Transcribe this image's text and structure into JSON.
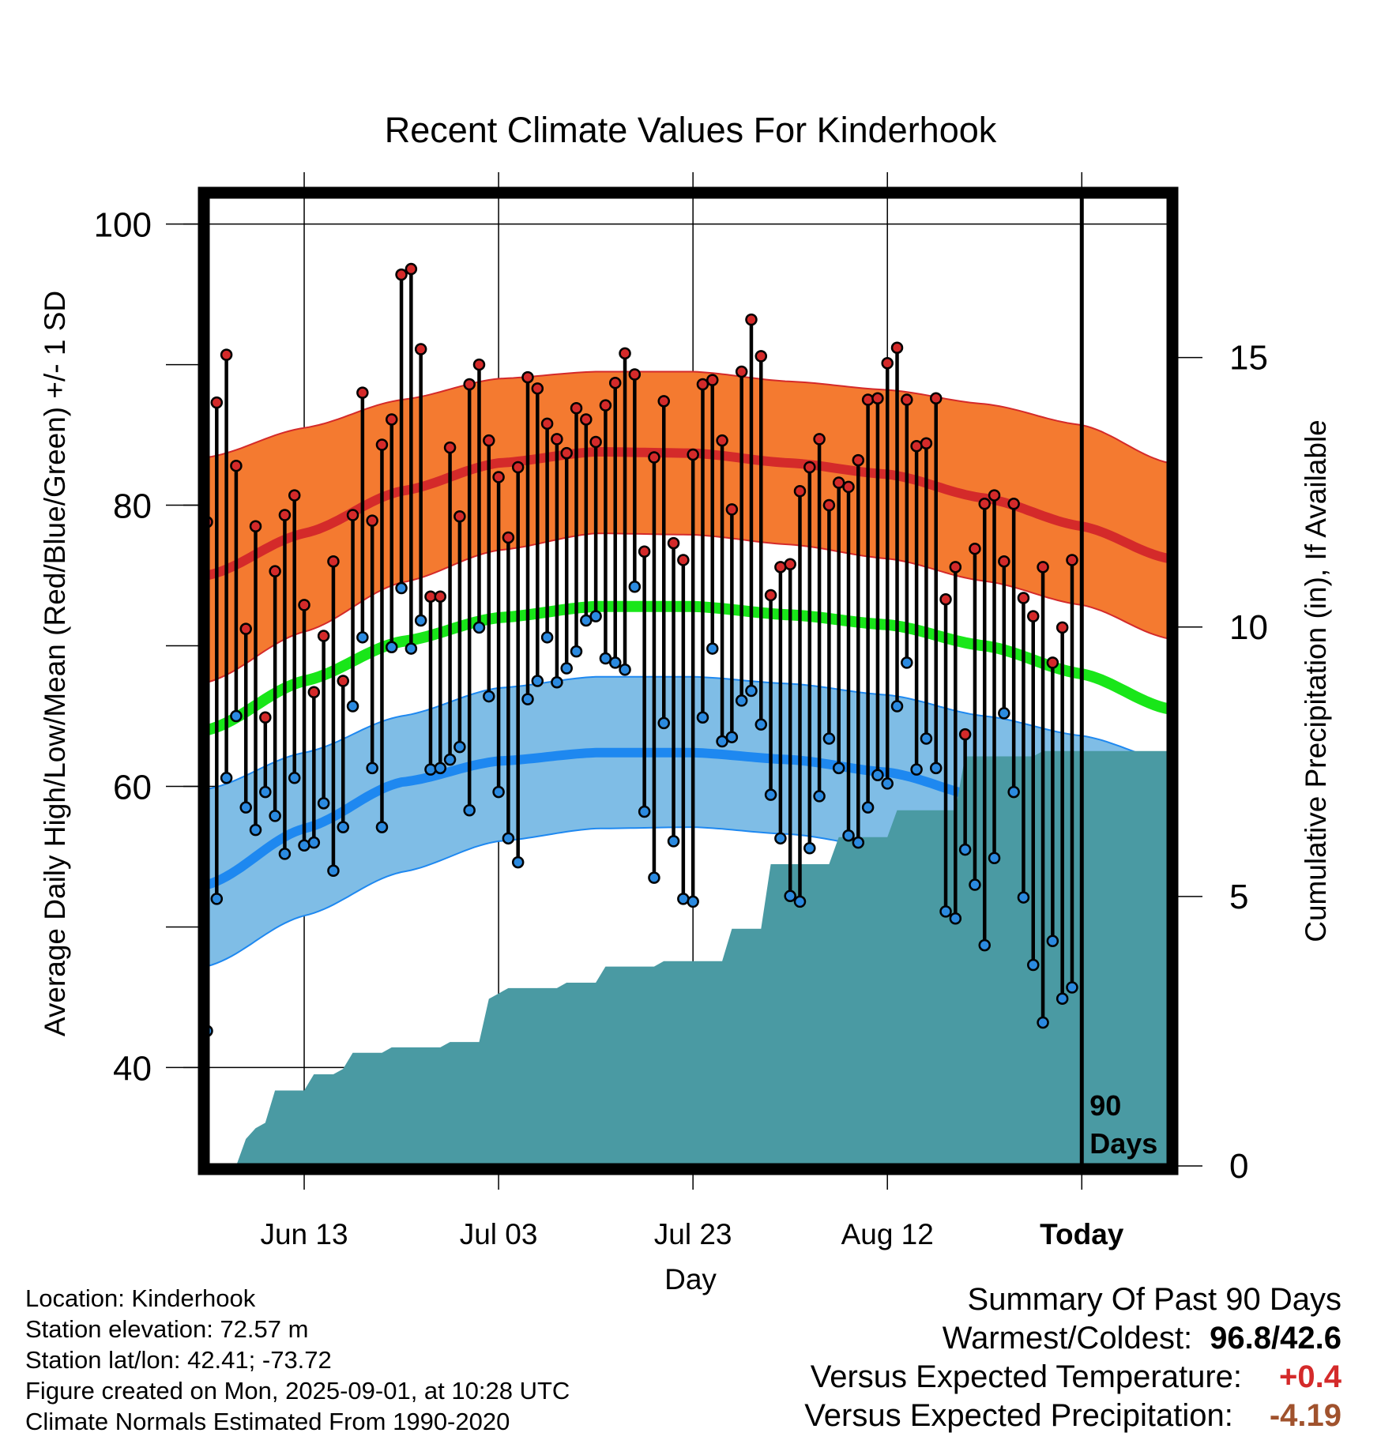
{
  "chart_data": {
    "type": "line",
    "title": "Recent Climate Values For Kinderhook",
    "xlabel": "Day",
    "ylabel": "Average Daily High/Low/Mean (Red/Blue/Green) +/- 1 SD",
    "y2label": "Cumulative Precipitation (in), If Available",
    "ylim": [
      33,
      102
    ],
    "y_ticks": [
      40,
      60,
      80,
      100
    ],
    "y2lim": [
      0,
      18
    ],
    "y2_ticks": [
      0,
      5,
      10,
      15
    ],
    "x_range_days": [
      -90,
      9
    ],
    "x_ticks": [
      {
        "day": -80,
        "label": "Jun 13"
      },
      {
        "day": -60,
        "label": "Jul 03"
      },
      {
        "day": -40,
        "label": "Jul 23"
      },
      {
        "day": -20,
        "label": "Aug 12"
      },
      {
        "day": 0,
        "label": "Today"
      }
    ],
    "today_marker_label": "90 Days",
    "grid": true,
    "normals": {
      "day": [
        -90,
        -80,
        -70,
        -60,
        -50,
        -40,
        -30,
        -20,
        -10,
        0,
        9
      ],
      "high_mean": [
        75.0,
        78.0,
        81.0,
        83.0,
        83.8,
        83.7,
        83.0,
        82.2,
        80.5,
        78.5,
        76.2
      ],
      "high_upper": [
        83.4,
        85.5,
        87.5,
        89.0,
        89.5,
        89.5,
        88.8,
        88.2,
        87.2,
        85.7,
        83.0
      ],
      "high_lower": [
        67.4,
        71.0,
        74.5,
        76.8,
        78.0,
        77.9,
        77.2,
        76.2,
        74.6,
        72.9,
        70.5
      ],
      "mean": [
        64.0,
        67.5,
        70.3,
        72.0,
        72.8,
        72.8,
        72.2,
        71.5,
        70.0,
        68.0,
        65.5
      ],
      "low_mean": [
        53.0,
        57.0,
        60.3,
        61.8,
        62.4,
        62.4,
        61.9,
        61.0,
        59.2,
        56.8,
        54.2
      ],
      "low_upper": [
        59.8,
        62.4,
        65.0,
        67.0,
        67.8,
        67.8,
        67.3,
        66.5,
        65.0,
        63.6,
        61.8
      ],
      "low_lower": [
        47.2,
        50.8,
        53.9,
        56.1,
        57.0,
        57.1,
        56.6,
        55.6,
        53.8,
        51.3,
        48.2
      ]
    },
    "series": [
      {
        "name": "High",
        "color": "#d42a2a",
        "values": [
          78.8,
          87.3,
          90.7,
          82.8,
          71.2,
          78.5,
          64.9,
          75.3,
          79.3,
          80.7,
          72.9,
          66.7,
          70.7,
          76.0,
          67.5,
          79.3,
          88.0,
          78.9,
          84.3,
          86.1,
          96.4,
          96.8,
          91.1,
          73.5,
          73.5,
          84.1,
          79.2,
          88.6,
          90.0,
          84.6,
          82.0,
          77.7,
          82.7,
          89.1,
          88.3,
          85.8,
          84.7,
          83.7,
          86.9,
          86.1,
          84.5,
          87.1,
          88.7,
          90.8,
          89.3,
          76.7,
          83.4,
          87.4,
          77.3,
          76.1,
          83.6,
          88.6,
          88.9,
          84.6,
          79.7,
          89.5,
          93.2,
          90.6,
          73.6,
          75.6,
          75.8,
          81.0,
          82.7,
          84.7,
          80.0,
          81.6,
          81.3,
          83.2,
          87.5,
          87.6,
          90.1,
          91.2,
          87.5,
          84.2,
          84.4,
          87.6,
          73.3,
          75.6,
          63.7,
          76.9,
          80.1,
          80.7,
          76.0,
          80.1,
          73.4,
          72.1,
          75.6,
          68.8,
          71.3,
          76.1
        ]
      },
      {
        "name": "Low",
        "color": "#2b8ae0",
        "values": [
          42.6,
          52.0,
          60.6,
          65.0,
          58.5,
          56.9,
          59.6,
          57.9,
          55.2,
          60.6,
          55.8,
          56.0,
          58.8,
          54.0,
          57.1,
          65.7,
          70.6,
          61.3,
          57.1,
          69.9,
          74.1,
          69.8,
          71.8,
          61.2,
          61.3,
          61.9,
          62.8,
          58.3,
          71.3,
          66.4,
          59.6,
          56.3,
          54.6,
          66.2,
          67.5,
          70.6,
          67.4,
          68.4,
          69.6,
          71.8,
          72.1,
          69.1,
          68.8,
          68.3,
          74.2,
          58.2,
          53.5,
          64.5,
          56.1,
          52.0,
          51.8,
          64.9,
          69.8,
          63.2,
          63.5,
          66.1,
          66.8,
          64.4,
          59.4,
          56.3,
          52.2,
          51.8,
          55.6,
          59.3,
          63.4,
          61.3,
          56.5,
          56.0,
          58.5,
          60.8,
          60.2,
          65.7,
          68.8,
          61.2,
          63.4,
          61.3,
          51.1,
          50.6,
          55.5,
          53.0,
          48.7,
          54.9,
          65.2,
          59.6,
          52.1,
          47.3,
          43.2,
          49.0,
          44.9,
          45.7
        ]
      },
      {
        "name": "Cumulative Precipitation",
        "color": "#4a9aa3",
        "values": [
          0.0,
          0.0,
          0.0,
          0.0,
          0.5,
          0.7,
          0.8,
          1.4,
          1.4,
          1.4,
          1.4,
          1.7,
          1.7,
          1.7,
          1.8,
          2.1,
          2.1,
          2.1,
          2.1,
          2.2,
          2.2,
          2.2,
          2.2,
          2.2,
          2.2,
          2.3,
          2.3,
          2.3,
          2.3,
          3.1,
          3.2,
          3.3,
          3.3,
          3.3,
          3.3,
          3.3,
          3.3,
          3.4,
          3.4,
          3.4,
          3.4,
          3.7,
          3.7,
          3.7,
          3.7,
          3.7,
          3.7,
          3.8,
          3.8,
          3.8,
          3.8,
          3.8,
          3.8,
          3.8,
          4.4,
          4.4,
          4.4,
          4.4,
          5.6,
          5.6,
          5.6,
          5.6,
          5.6,
          5.6,
          5.6,
          6.1,
          6.1,
          6.1,
          6.1,
          6.1,
          6.1,
          6.6,
          6.6,
          6.6,
          6.6,
          6.6,
          6.6,
          6.6,
          7.6,
          7.6,
          7.6,
          7.6,
          7.6,
          7.6,
          7.6,
          7.6,
          7.7,
          7.7,
          7.7,
          7.7,
          7.7,
          7.7,
          7.7,
          7.7,
          7.7,
          7.7,
          7.7,
          7.7,
          7.7,
          7.7
        ]
      }
    ],
    "colors": {
      "high_band": "#f47a30",
      "high_line": "#d42a2a",
      "mean_line": "#19e619",
      "low_band": "#7fbde6",
      "low_line": "#1e88f0",
      "precip": "#4a9aa3",
      "high_dot": "#d42a2a",
      "low_dot": "#2b8ae0"
    }
  },
  "footer": {
    "location": "Location: Kinderhook",
    "elevation": "Station elevation: 72.57 m",
    "latlon": "Station lat/lon: 42.41; -73.72",
    "created": "Figure created on Mon, 2025-09-01, at 10:28 UTC",
    "normals": "Climate Normals Estimated From 1990-2020"
  },
  "summary": {
    "title": "Summary Of Past 90 Days",
    "warmest_coldest_label": "Warmest/Coldest:",
    "warmest_coldest_value": "96.8/42.6",
    "temp_label": "Versus Expected Temperature:",
    "temp_value": "+0.4",
    "temp_color": "#d42a2a",
    "precip_label": "Versus Expected Precipitation:",
    "precip_value": "-4.19",
    "precip_color": "#a0522d"
  }
}
